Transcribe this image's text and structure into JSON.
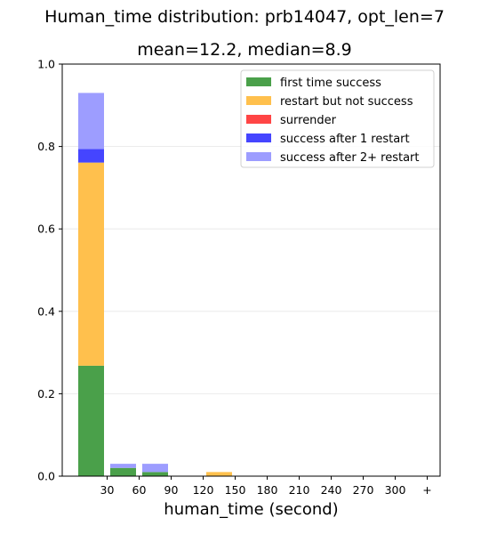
{
  "chart_data": {
    "type": "bar",
    "title": "Human_time distribution: prb14047, opt_len=7",
    "subtitle": "mean=12.2, median=8.9",
    "xlabel": "human_time (second)",
    "ylabel": "",
    "ylim": [
      0,
      1.0
    ],
    "yticks": [
      "0.0",
      "0.2",
      "0.4",
      "0.6",
      "0.8",
      "1.0"
    ],
    "xticks": [
      "30",
      "60",
      "90",
      "120",
      "150",
      "180",
      "210",
      "240",
      "270",
      "300",
      "+"
    ],
    "grid": true,
    "legend_position": "top-right",
    "stacked": true,
    "series": [
      {
        "name": "first time success",
        "color": "#4aa04a",
        "values": [
          0.268,
          0.02,
          0.01,
          0,
          0,
          0,
          0,
          0,
          0,
          0,
          0,
          0
        ]
      },
      {
        "name": "restart but not success",
        "color": "#ffc04d",
        "values": [
          0.493,
          0,
          0,
          0,
          0.01,
          0,
          0,
          0,
          0,
          0,
          0,
          0
        ]
      },
      {
        "name": "surrender",
        "color": "#ff4545",
        "values": [
          0,
          0,
          0,
          0,
          0,
          0,
          0,
          0,
          0,
          0,
          0,
          0
        ]
      },
      {
        "name": "success after 1 restart",
        "color": "#4545ff",
        "values": [
          0.033,
          0,
          0,
          0,
          0,
          0,
          0,
          0,
          0,
          0,
          0,
          0
        ]
      },
      {
        "name": "success after 2+ restart",
        "color": "#9d9dff",
        "values": [
          0.136,
          0.01,
          0.02,
          0,
          0,
          0,
          0,
          0,
          0,
          0,
          0,
          0
        ]
      }
    ]
  }
}
